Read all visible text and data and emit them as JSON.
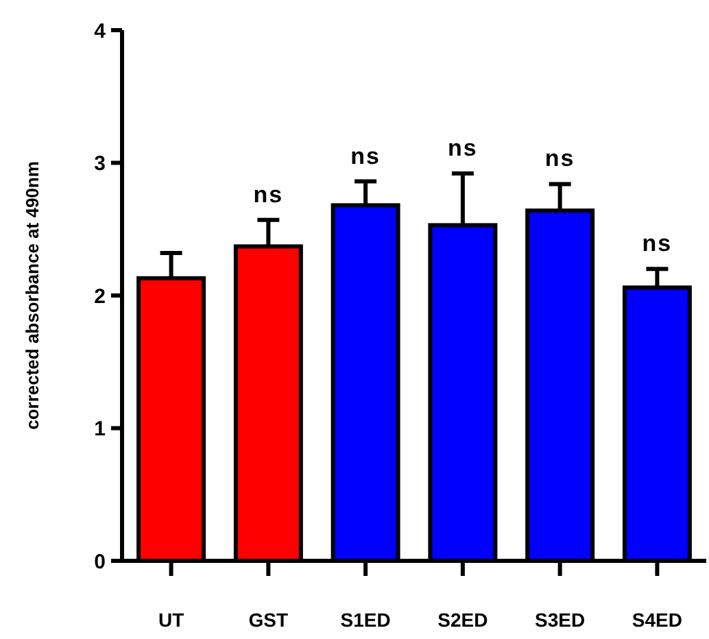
{
  "chart_data": {
    "type": "bar",
    "ylabel": "corrected absorbance at 490nm",
    "categories": [
      "UT",
      "GST",
      "S1ED",
      "S2ED",
      "S3ED",
      "S4ED"
    ],
    "values": [
      2.13,
      2.37,
      2.68,
      2.53,
      2.64,
      2.06
    ],
    "colors": [
      "#ff0000",
      "#ff0000",
      "#0000ff",
      "#0000ff",
      "#0000ff",
      "#0000ff"
    ],
    "errors": [
      0.19,
      0.2,
      0.18,
      0.39,
      0.2,
      0.14
    ],
    "value_labels": [
      null,
      "ns",
      "ns",
      "ns",
      "ns",
      "ns"
    ],
    "ylim": [
      0,
      4
    ],
    "yticks": [
      0,
      1,
      2,
      3,
      4
    ]
  }
}
